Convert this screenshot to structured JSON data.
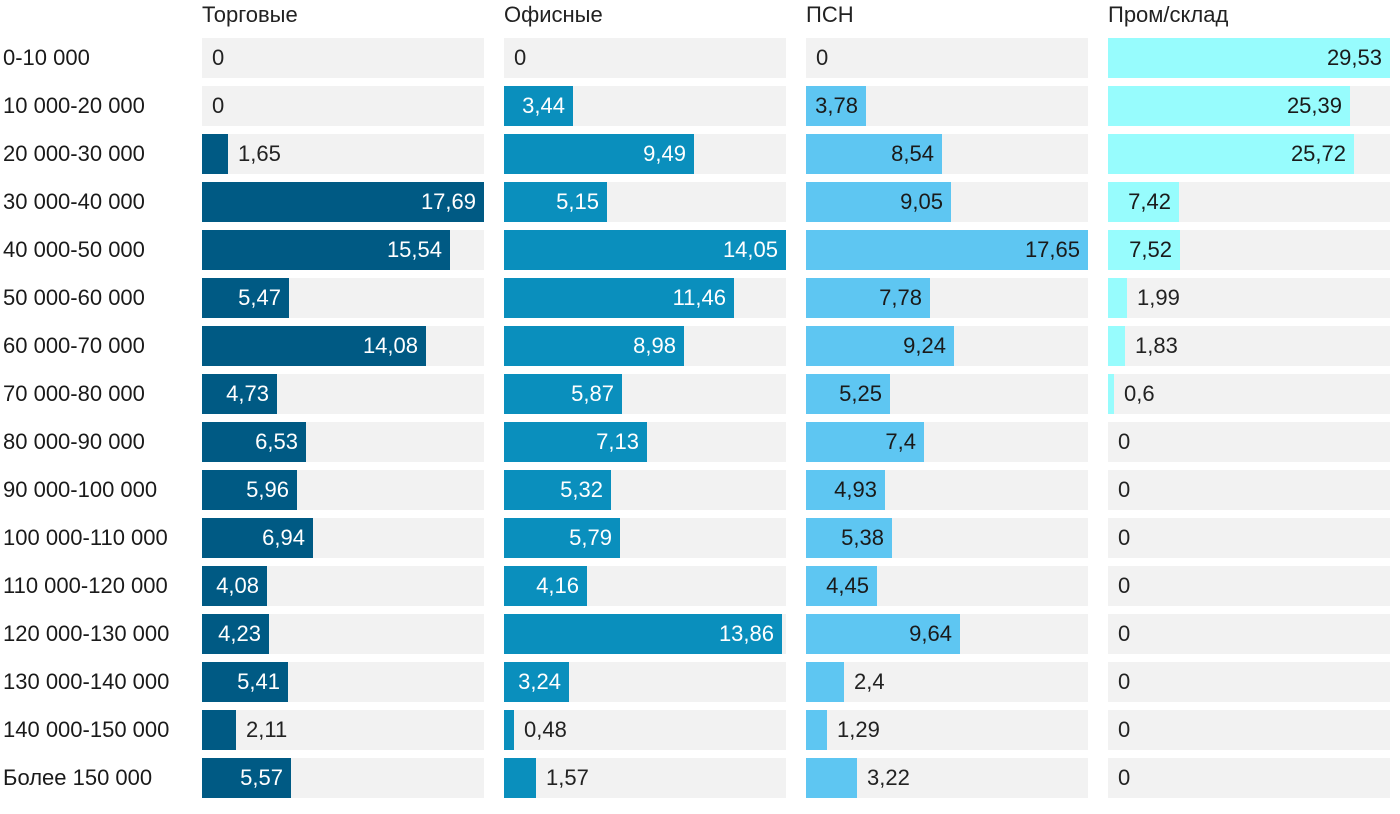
{
  "chart_data": {
    "type": "bar",
    "orientation": "horizontal",
    "layout": "small-multiples",
    "categories": [
      "0-10 000",
      "10 000-20 000",
      "20 000-30 000",
      "30 000-40 000",
      "40 000-50 000",
      "50 000-60 000",
      "60 000-70 000",
      "70 000-80 000",
      "80 000-90 000",
      "90 000-100 000",
      "100 000-110 000",
      "110 000-120 000",
      "120 000-130 000",
      "130 000-140 000",
      "140 000-150 000",
      "Более 150 000"
    ],
    "series": [
      {
        "name": "Торговые",
        "color": "#005a84",
        "text_color_inside": "#ffffff",
        "max": 17.69,
        "values": [
          0,
          0,
          1.65,
          17.69,
          15.54,
          5.47,
          14.08,
          4.73,
          6.53,
          5.96,
          6.94,
          4.08,
          4.23,
          5.41,
          2.11,
          5.57
        ],
        "labels": [
          "0",
          "0",
          "1,65",
          "17,69",
          "15,54",
          "5,47",
          "14,08",
          "4,73",
          "6,53",
          "5,96",
          "6,94",
          "4,08",
          "4,23",
          "5,41",
          "2,11",
          "5,57"
        ]
      },
      {
        "name": "Офисные",
        "color": "#0a8fbd",
        "text_color_inside": "#ffffff",
        "max": 14.05,
        "values": [
          0,
          3.44,
          9.49,
          5.15,
          14.05,
          11.46,
          8.98,
          5.87,
          7.13,
          5.32,
          5.79,
          4.16,
          13.86,
          3.24,
          0.48,
          1.57
        ],
        "labels": [
          "0",
          "3,44",
          "9,49",
          "5,15",
          "14,05",
          "11,46",
          "8,98",
          "5,87",
          "7,13",
          "5,32",
          "5,79",
          "4,16",
          "13,86",
          "3,24",
          "0,48",
          "1,57"
        ]
      },
      {
        "name": "ПСН",
        "color": "#5ec6f2",
        "text_color_inside": "#1a1a1a",
        "max": 17.65,
        "values": [
          0,
          3.78,
          8.54,
          9.05,
          17.65,
          7.78,
          9.24,
          5.25,
          7.4,
          4.93,
          5.38,
          4.45,
          9.64,
          2.4,
          1.29,
          3.22
        ],
        "labels": [
          "0",
          "3,78",
          "8,54",
          "9,05",
          "17,65",
          "7,78",
          "9,24",
          "5,25",
          "7,4",
          "4,93",
          "5,38",
          "4,45",
          "9,64",
          "2,4",
          "1,29",
          "3,22"
        ]
      },
      {
        "name": "Пром/склад",
        "color": "#97fcfd",
        "text_color_inside": "#1a1a1a",
        "max": 29.53,
        "values": [
          29.53,
          25.39,
          25.72,
          7.42,
          7.52,
          1.99,
          1.83,
          0.6,
          0,
          0,
          0,
          0,
          0,
          0,
          0,
          0
        ],
        "labels": [
          "29,53",
          "25,39",
          "25,72",
          "7,42",
          "7,52",
          "1,99",
          "1,83",
          "0,6",
          "0",
          "0",
          "0",
          "0",
          "0",
          "0",
          "0",
          "0"
        ]
      }
    ],
    "title": "",
    "xlabel": "",
    "ylabel": "",
    "grid": false,
    "legend": "none"
  }
}
